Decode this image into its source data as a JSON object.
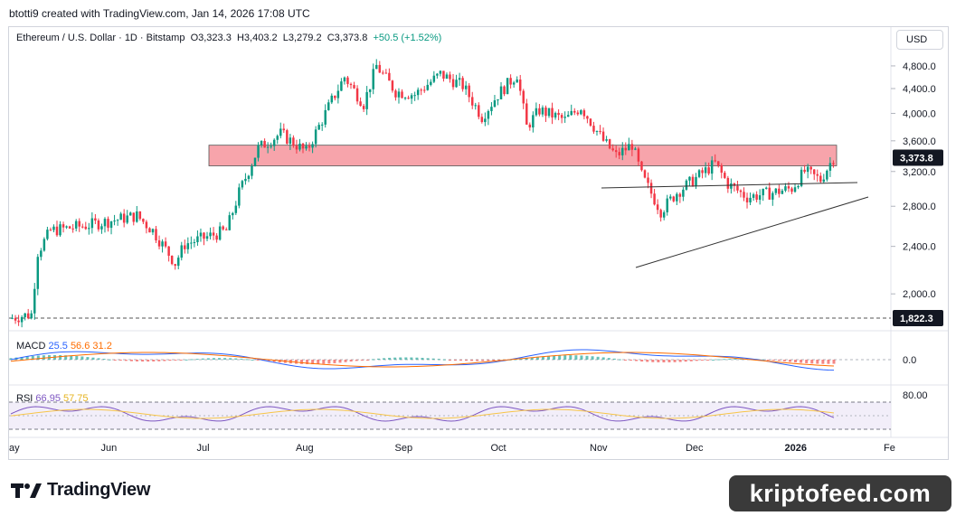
{
  "credit": "btotti9 created with TradingView.com, Jan 14, 2026 17:08 UTC",
  "legend": {
    "symbol": "Ethereum / U.S. Dollar · 1D · Bitstamp",
    "open": "O3,323.3",
    "high": "H3,403.2",
    "low": "L3,279.2",
    "close": "C3,373.8",
    "change": "+50.5 (+1.52%)"
  },
  "currency_button": "USD",
  "price_axis": {
    "ticks": [
      "4,800.0",
      "4,400.0",
      "4,000.0",
      "3,600.0",
      "3,200.0",
      "2,800.0",
      "2,400.0",
      "2,000.0"
    ],
    "current_price_label": "3,373.8",
    "support_label": "1,822.3"
  },
  "macd": {
    "name": "MACD",
    "v1": "25.5",
    "v2": "56.6",
    "v3": "31.2",
    "axis_label": "0.0",
    "colors": {
      "v1": "#2962ff",
      "v2": "#ff6d00",
      "v3": "#ef5350"
    }
  },
  "rsi": {
    "name": "RSI",
    "v1": "66.95",
    "v2": "57.75",
    "axis_label": "80.00",
    "colors": {
      "v1": "#7e57c2",
      "v2": "#f7c548"
    }
  },
  "time_axis": [
    "ay",
    "Jun",
    "Jul",
    "Aug",
    "Sep",
    "Oct",
    "Nov",
    "Dec",
    "2026",
    "Fe"
  ],
  "branding": {
    "logo_text": "TradingView",
    "watermark": "kriptofeed.com"
  },
  "colors": {
    "up": "#089981",
    "down": "#f23645",
    "resistance_zone": "#f7a4ab"
  },
  "chart_data": {
    "type": "candlestick",
    "symbol": "Ethereum / U.S. Dollar",
    "interval": "1D",
    "exchange": "Bitstamp",
    "y_scale": "log",
    "ylim": [
      1700,
      5000
    ],
    "x_range": [
      "2025-05-01",
      "2026-02-01"
    ],
    "resistance_zone": [
      3270,
      3540
    ],
    "support_level": 1822.3,
    "last_close": 3373.8,
    "price_path": [
      [
        "2025-05-01",
        1820
      ],
      [
        "2025-05-08",
        1850
      ],
      [
        "2025-05-10",
        2350
      ],
      [
        "2025-05-14",
        2550
      ],
      [
        "2025-05-25",
        2600
      ],
      [
        "2025-06-10",
        2700
      ],
      [
        "2025-06-15",
        2550
      ],
      [
        "2025-06-22",
        2250
      ],
      [
        "2025-06-25",
        2420
      ],
      [
        "2025-07-08",
        2550
      ],
      [
        "2025-07-12",
        2950
      ],
      [
        "2025-07-18",
        3500
      ],
      [
        "2025-07-25",
        3700
      ],
      [
        "2025-08-02",
        3450
      ],
      [
        "2025-08-10",
        4200
      ],
      [
        "2025-08-14",
        4600
      ],
      [
        "2025-08-20",
        4150
      ],
      [
        "2025-08-24",
        4800
      ],
      [
        "2025-08-30",
        4350
      ],
      [
        "2025-09-05",
        4300
      ],
      [
        "2025-09-13",
        4650
      ],
      [
        "2025-09-20",
        4450
      ],
      [
        "2025-09-26",
        3950
      ],
      [
        "2025-10-01",
        4300
      ],
      [
        "2025-10-07",
        4650
      ],
      [
        "2025-10-10",
        3800
      ],
      [
        "2025-10-14",
        4050
      ],
      [
        "2025-10-22",
        3900
      ],
      [
        "2025-10-27",
        4100
      ],
      [
        "2025-11-03",
        3600
      ],
      [
        "2025-11-07",
        3400
      ],
      [
        "2025-11-12",
        3550
      ],
      [
        "2025-11-15",
        3150
      ],
      [
        "2025-11-21",
        2750
      ],
      [
        "2025-11-26",
        2950
      ],
      [
        "2025-12-03",
        3150
      ],
      [
        "2025-12-08",
        3300
      ],
      [
        "2025-12-12",
        3050
      ],
      [
        "2025-12-18",
        2900
      ],
      [
        "2025-12-26",
        2950
      ],
      [
        "2026-01-01",
        3000
      ],
      [
        "2026-01-05",
        3200
      ],
      [
        "2026-01-10",
        3100
      ],
      [
        "2026-01-14",
        3373.8
      ]
    ]
  }
}
